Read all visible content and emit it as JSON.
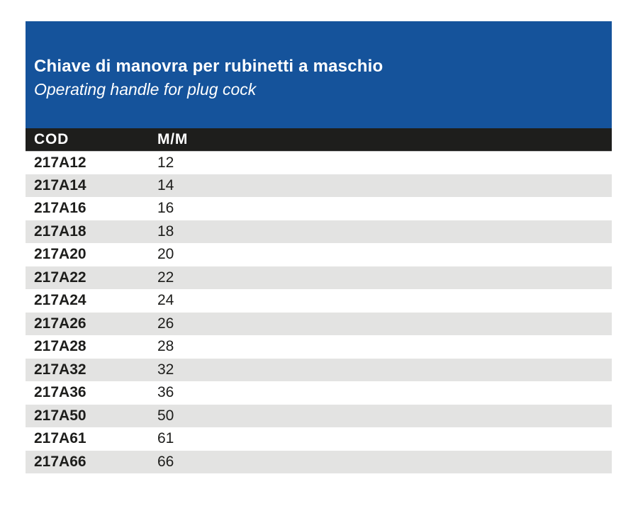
{
  "banner": {
    "title_it": "Chiave di manovra per rubinetti a maschio",
    "title_en": "Operating handle for plug cock",
    "bg_color": "#15539b"
  },
  "table": {
    "headers": {
      "cod": "COD",
      "mm": "M/M"
    },
    "rows": [
      {
        "cod": "217A12",
        "mm": "12"
      },
      {
        "cod": "217A14",
        "mm": "14"
      },
      {
        "cod": "217A16",
        "mm": "16"
      },
      {
        "cod": "217A18",
        "mm": "18"
      },
      {
        "cod": "217A20",
        "mm": "20"
      },
      {
        "cod": "217A22",
        "mm": "22"
      },
      {
        "cod": "217A24",
        "mm": "24"
      },
      {
        "cod": "217A26",
        "mm": "26"
      },
      {
        "cod": "217A28",
        "mm": "28"
      },
      {
        "cod": "217A32",
        "mm": "32"
      },
      {
        "cod": "217A36",
        "mm": "36"
      },
      {
        "cod": "217A50",
        "mm": "50"
      },
      {
        "cod": "217A61",
        "mm": "61"
      },
      {
        "cod": "217A66",
        "mm": "66"
      }
    ],
    "colors": {
      "header_bg": "#1e1e1c",
      "alt_row_bg": "#e3e3e2",
      "text": "#1d1d1b"
    }
  }
}
